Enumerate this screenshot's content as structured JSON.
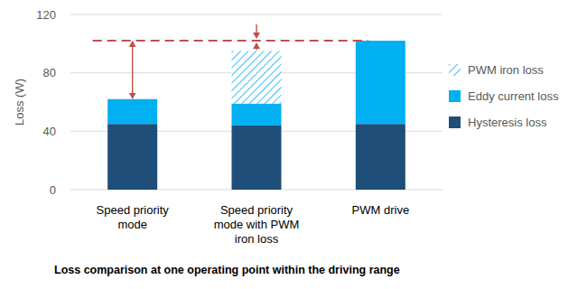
{
  "chart_data": {
    "type": "bar",
    "stacked": true,
    "title": "Loss comparison at one operating point within the driving range",
    "y_label": "Loss (W)",
    "categories": [
      "Speed priority mode",
      "Speed priority mode with PWM iron loss",
      "PWM drive"
    ],
    "series": [
      {
        "name": "Hysteresis loss",
        "color": "#1f4e79",
        "values": [
          45,
          44,
          45
        ]
      },
      {
        "name": "Eddy current loss",
        "color": "#00b0f0",
        "values": [
          17,
          15,
          57
        ]
      },
      {
        "name": "PWM iron loss",
        "color": "#00b0f0",
        "line_style": "hatched",
        "values": [
          null,
          36,
          null
        ]
      }
    ],
    "reference_line": {
      "value": 102,
      "color": "#c0504d",
      "line_style": "dashed"
    },
    "ylim": [
      0,
      120
    ],
    "yticks": [
      0,
      40,
      80,
      120
    ],
    "grid": true,
    "legend": "right"
  }
}
